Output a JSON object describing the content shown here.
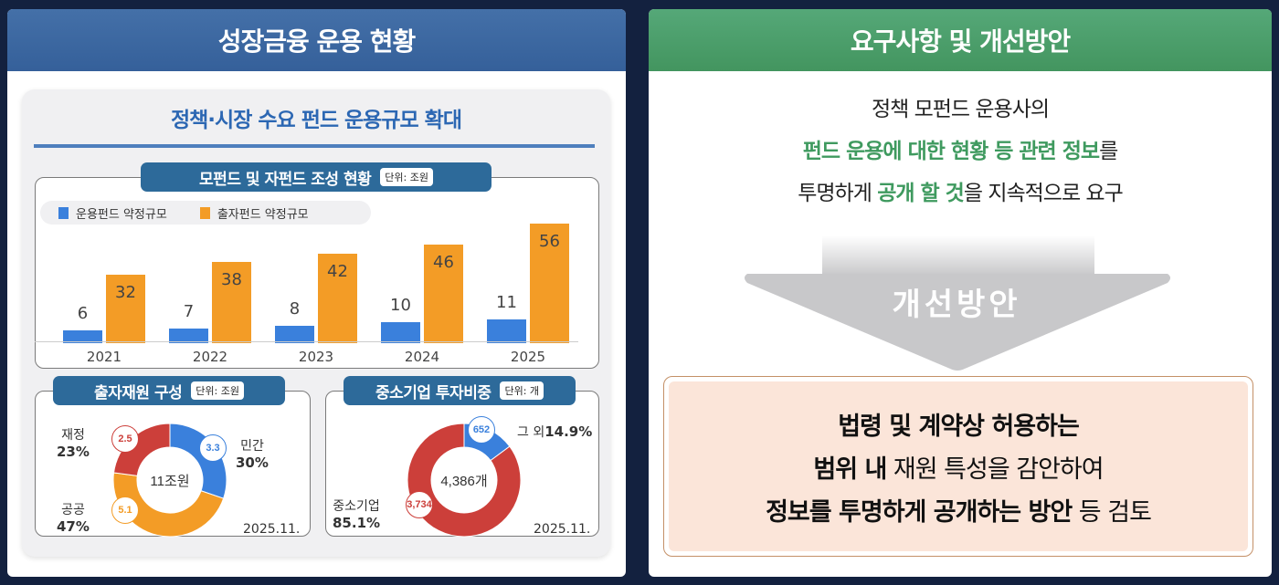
{
  "left_panel": {
    "header": "성장금융 운용 현황",
    "inner_title": "정책·시장 수요 펀드 운용규모 확대",
    "bar_chart": {
      "title": "모펀드 및 자펀드 조성 현황",
      "unit": "단위: 조원",
      "legend": [
        "운용펀드 약정규모",
        "출자펀드 약정규모"
      ]
    },
    "fund_donut": {
      "title": "출자재원 구성",
      "unit": "단위: 조원",
      "center": "11조원",
      "date": "2025.11.",
      "segments": [
        {
          "name": "민간",
          "value": "3.3",
          "pct": "30%"
        },
        {
          "name": "공공",
          "value": "5.1",
          "pct": "47%"
        },
        {
          "name": "재정",
          "value": "2.5",
          "pct": "23%"
        }
      ]
    },
    "sme_donut": {
      "title": "중소기업 투자비중",
      "unit": "단위: 개",
      "center": "4,386개",
      "date": "2025.11.",
      "segments": [
        {
          "name": "그 외",
          "value": "652",
          "pct": "14.9%"
        },
        {
          "name": "중소기업",
          "value": "3,734",
          "pct": "85.1%"
        }
      ]
    }
  },
  "right_panel": {
    "header": "요구사항 및 개선방안",
    "requirement": {
      "line1": "정책 모펀드 운용사의",
      "line2_green": "펀드 운용에 대한 현황 등 관련 정보",
      "line2_rest": "를",
      "line3_a": "투명하게 ",
      "line3_green": "공개 할 것",
      "line3_b": "을 지속적으로 요구"
    },
    "arrow_label": "개선방안",
    "solution": {
      "line1": "법령 및 계약상 허용하는",
      "line2_bold": "범위 내",
      "line2_rest": " 재원 특성을 감안하여",
      "line3_bold": "정보를 투명하게 공개하는 방안",
      "line3_rest": " 등 검토"
    }
  },
  "colors": {
    "blue": "#3a80dc",
    "orange": "#f39c26",
    "red": "#cc3f3a",
    "green": "#3f9a5f",
    "navy_bg": "#13213f"
  },
  "chart_data": [
    {
      "type": "bar",
      "title": "모펀드 및 자펀드 조성 현황",
      "ylabel": "단위: 조원",
      "categories": [
        "2021",
        "2022",
        "2023",
        "2024",
        "2025"
      ],
      "series": [
        {
          "name": "운용펀드 약정규모",
          "values": [
            6,
            7,
            8,
            10,
            11
          ]
        },
        {
          "name": "출자펀드 약정규모",
          "values": [
            32,
            38,
            42,
            46,
            56
          ]
        }
      ],
      "legend_position": "top-left",
      "grid": false
    },
    {
      "type": "pie",
      "title": "출자재원 구성",
      "unit": "조원",
      "center_label": "11조원",
      "labels": [
        "민간",
        "공공",
        "재정"
      ],
      "values": [
        3.3,
        5.1,
        2.5
      ],
      "percentages": [
        30,
        47,
        23
      ],
      "note": "2025.11."
    },
    {
      "type": "pie",
      "title": "중소기업 투자비중",
      "unit": "개",
      "center_label": "4,386개",
      "labels": [
        "그 외",
        "중소기업"
      ],
      "values": [
        652,
        3734
      ],
      "percentages": [
        14.9,
        85.1
      ],
      "note": "2025.11."
    }
  ]
}
